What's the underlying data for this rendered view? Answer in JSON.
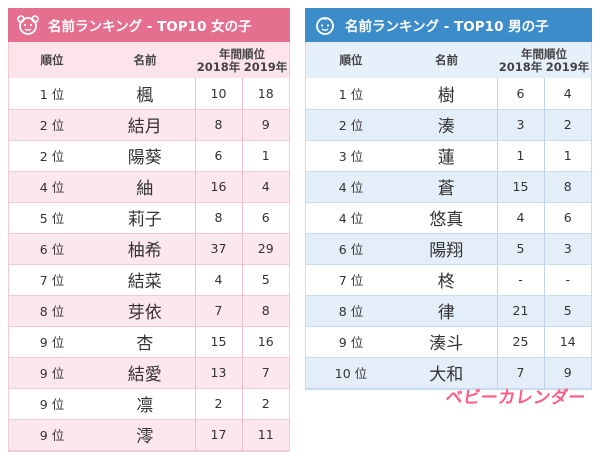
{
  "girls": {
    "title": "名前ランキング - TOP10 女の子",
    "headers": {
      "rank": "順位",
      "name": "名前",
      "years_title": "年間順位",
      "y2018": "2018年",
      "y2019": "2019年"
    },
    "rows": [
      {
        "rank": "1 位",
        "name": "楓",
        "y2018": "10",
        "y2019": "18"
      },
      {
        "rank": "2 位",
        "name": "結月",
        "y2018": "8",
        "y2019": "9"
      },
      {
        "rank": "2 位",
        "name": "陽葵",
        "y2018": "6",
        "y2019": "1"
      },
      {
        "rank": "4 位",
        "name": "紬",
        "y2018": "16",
        "y2019": "4"
      },
      {
        "rank": "5 位",
        "name": "莉子",
        "y2018": "8",
        "y2019": "6"
      },
      {
        "rank": "6 位",
        "name": "柚希",
        "y2018": "37",
        "y2019": "29"
      },
      {
        "rank": "7 位",
        "name": "結菜",
        "y2018": "4",
        "y2019": "5"
      },
      {
        "rank": "8 位",
        "name": "芽依",
        "y2018": "7",
        "y2019": "8"
      },
      {
        "rank": "9 位",
        "name": "杏",
        "y2018": "15",
        "y2019": "16"
      },
      {
        "rank": "9 位",
        "name": "結愛",
        "y2018": "13",
        "y2019": "7"
      },
      {
        "rank": "9 位",
        "name": "凛",
        "y2018": "2",
        "y2019": "2"
      },
      {
        "rank": "9 位",
        "name": "澪",
        "y2018": "17",
        "y2019": "11"
      }
    ]
  },
  "boys": {
    "title": "名前ランキング - TOP10 男の子",
    "headers": {
      "rank": "順位",
      "name": "名前",
      "years_title": "年間順位",
      "y2018": "2018年",
      "y2019": "2019年"
    },
    "rows": [
      {
        "rank": "1 位",
        "name": "樹",
        "y2018": "6",
        "y2019": "4"
      },
      {
        "rank": "2 位",
        "name": "湊",
        "y2018": "3",
        "y2019": "2"
      },
      {
        "rank": "3 位",
        "name": "蓮",
        "y2018": "1",
        "y2019": "1"
      },
      {
        "rank": "4 位",
        "name": "蒼",
        "y2018": "15",
        "y2019": "8"
      },
      {
        "rank": "4 位",
        "name": "悠真",
        "y2018": "4",
        "y2019": "6"
      },
      {
        "rank": "6 位",
        "name": "陽翔",
        "y2018": "5",
        "y2019": "3"
      },
      {
        "rank": "7 位",
        "name": "柊",
        "y2018": "-",
        "y2019": "-"
      },
      {
        "rank": "8 位",
        "name": "律",
        "y2018": "21",
        "y2019": "5"
      },
      {
        "rank": "9 位",
        "name": "湊斗",
        "y2018": "25",
        "y2019": "14"
      },
      {
        "rank": "10 位",
        "name": "大和",
        "y2018": "7",
        "y2019": "9"
      }
    ]
  },
  "logo": {
    "text": "ベビーカレンダー"
  },
  "colors": {
    "girls_header": "#e56f8e",
    "boys_header": "#3c8cc9",
    "girls_row_alt": "#fde7ee",
    "boys_row_alt": "#e4eef9",
    "logo": "#ff5a83"
  },
  "icons": {
    "girls": "girl-face-icon",
    "boys": "boy-face-icon"
  }
}
